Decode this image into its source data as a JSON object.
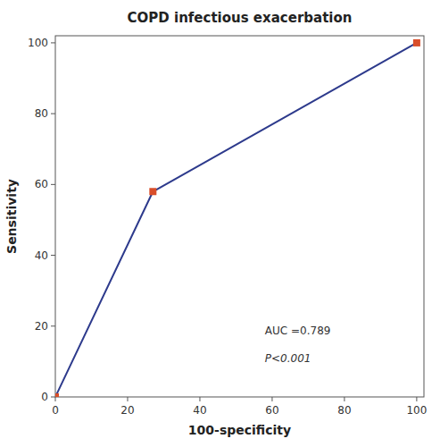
{
  "chart_data": {
    "type": "line",
    "title": "COPD infectious exacerbation",
    "xlabel": "100-specificity",
    "ylabel": "Sensitivity",
    "x": [
      0,
      27,
      100
    ],
    "values": [
      0,
      58,
      100
    ],
    "color": "#2d3a8c",
    "marker": "square",
    "colors": [
      "#d94e2a",
      "#d94e2a",
      "#d94e2a"
    ],
    "xlim": [
      0,
      102
    ],
    "ylim": [
      0,
      102
    ],
    "xticks": [
      0,
      20,
      40,
      60,
      80,
      100
    ],
    "yticks": [
      0,
      20,
      40,
      60,
      80,
      100
    ],
    "grid": false,
    "annotations": [
      {
        "text": "AUC =0.789",
        "x": 58,
        "y": 17
      },
      {
        "text": "P<0.001",
        "x": 58,
        "y": 12
      }
    ]
  }
}
